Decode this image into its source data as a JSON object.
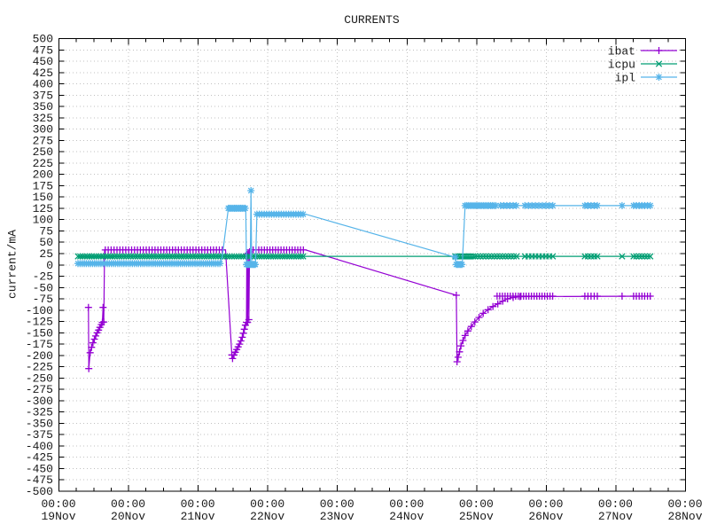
{
  "window": {
    "title": "CURRENTS"
  },
  "colors": {
    "background": "#ffffff",
    "border": "#000000",
    "grid": "#c0c0c0",
    "text": "#1a1a1a",
    "ibat": "#9400d3",
    "icpu": "#009e73",
    "ipl": "#56b4e9"
  },
  "chart_data": {
    "type": "line",
    "title": "CURRENTS",
    "ylabel": "current/mA",
    "xlabel": "",
    "ylim": [
      -500,
      500
    ],
    "ytick_step": 25,
    "grid": true,
    "legend_position": "top-right-inside",
    "x_unit": "days_since_19Nov_00:00",
    "x_range_days": [
      0,
      9
    ],
    "x_axis": {
      "tick_times": [
        "00:00",
        "00:00",
        "00:00",
        "00:00",
        "00:00",
        "00:00",
        "00:00",
        "00:00",
        "00:00",
        "00:00"
      ],
      "tick_dates": [
        "19Nov",
        "20Nov",
        "21Nov",
        "22Nov",
        "23Nov",
        "24Nov",
        "25Nov",
        "26Nov",
        "27Nov",
        "28Nov"
      ],
      "minor_ticks_per_day": 3
    },
    "legend": [
      {
        "label": "ibat"
      },
      {
        "label": "icpu"
      },
      {
        "label": "ipl"
      }
    ],
    "series": [
      {
        "name": "ibat",
        "color": "#9400d3",
        "marker": "plus",
        "line": [
          [
            0.43,
            -95
          ],
          [
            0.435,
            -230
          ],
          [
            0.455,
            -195
          ],
          [
            0.475,
            -183
          ],
          [
            0.495,
            -173
          ],
          [
            0.515,
            -165
          ],
          [
            0.535,
            -158
          ],
          [
            0.555,
            -151
          ],
          [
            0.575,
            -145
          ],
          [
            0.595,
            -139
          ],
          [
            0.615,
            -133
          ],
          [
            0.63,
            -128
          ],
          [
            0.64,
            -95
          ],
          [
            0.65,
            -127
          ],
          [
            0.662,
            32
          ],
          [
            2.4,
            32
          ],
          [
            2.49,
            -200
          ],
          [
            2.5,
            -208
          ],
          [
            2.52,
            -200
          ],
          [
            2.54,
            -194
          ],
          [
            2.56,
            -188
          ],
          [
            2.58,
            -182
          ],
          [
            2.6,
            -176
          ],
          [
            2.62,
            -169
          ],
          [
            2.64,
            -161
          ],
          [
            2.655,
            -152
          ],
          [
            2.67,
            -143
          ],
          [
            2.685,
            -134
          ],
          [
            2.7,
            -128
          ],
          [
            2.705,
            22
          ],
          [
            2.715,
            -128
          ],
          [
            2.725,
            25
          ],
          [
            2.735,
            -122
          ],
          [
            2.745,
            28
          ],
          [
            2.755,
            32
          ],
          [
            3.55,
            32
          ],
          [
            5.715,
            -68
          ],
          [
            5.725,
            -215
          ],
          [
            5.74,
            -205
          ],
          [
            5.76,
            -193
          ],
          [
            5.78,
            -180
          ],
          [
            5.81,
            -168
          ],
          [
            5.84,
            -157
          ],
          [
            5.88,
            -147
          ],
          [
            5.93,
            -137
          ],
          [
            5.98,
            -127
          ],
          [
            6.04,
            -117
          ],
          [
            6.1,
            -108
          ],
          [
            6.17,
            -100
          ],
          [
            6.24,
            -93
          ],
          [
            6.31,
            -87
          ],
          [
            6.38,
            -81
          ],
          [
            6.45,
            -76
          ],
          [
            6.53,
            -73
          ],
          [
            6.63,
            -71
          ],
          [
            8.52,
            -70
          ]
        ],
        "marker_points": [
          [
            0.43,
            -95
          ],
          [
            0.435,
            -230
          ],
          [
            0.455,
            -195
          ],
          [
            0.475,
            -183
          ],
          [
            0.495,
            -173
          ],
          [
            0.515,
            -165
          ],
          [
            0.535,
            -158
          ],
          [
            0.555,
            -151
          ],
          [
            0.575,
            -145
          ],
          [
            0.595,
            -139
          ],
          [
            0.615,
            -133
          ],
          [
            0.63,
            -128
          ],
          [
            0.64,
            -95
          ],
          [
            0.65,
            -127
          ],
          [
            2.49,
            -200
          ],
          [
            2.5,
            -208
          ],
          [
            2.52,
            -200
          ],
          [
            2.54,
            -194
          ],
          [
            2.56,
            -188
          ],
          [
            2.58,
            -182
          ],
          [
            2.6,
            -176
          ],
          [
            2.62,
            -169
          ],
          [
            2.64,
            -161
          ],
          [
            2.655,
            -152
          ],
          [
            2.67,
            -143
          ],
          [
            2.685,
            -134
          ],
          [
            2.7,
            -128
          ],
          [
            2.705,
            22
          ],
          [
            2.715,
            -128
          ],
          [
            2.725,
            25
          ],
          [
            2.735,
            -122
          ],
          [
            2.745,
            28
          ],
          [
            5.715,
            -68
          ],
          [
            5.725,
            -215
          ],
          [
            5.74,
            -205
          ],
          [
            5.76,
            -193
          ],
          [
            5.78,
            -180
          ],
          [
            5.81,
            -168
          ],
          [
            5.84,
            -157
          ],
          [
            5.88,
            -147
          ],
          [
            5.93,
            -137
          ],
          [
            5.98,
            -127
          ],
          [
            6.04,
            -117
          ],
          [
            6.1,
            -108
          ],
          [
            6.17,
            -100
          ],
          [
            6.24,
            -93
          ],
          [
            6.31,
            -87
          ],
          [
            6.38,
            -81
          ],
          [
            6.45,
            -76
          ],
          [
            6.53,
            -73
          ],
          [
            6.63,
            -71
          ],
          [
            8.095,
            -70
          ]
        ],
        "marker_runs": [
          [
            0.672,
            2.39,
            0.042,
            32
          ],
          [
            2.757,
            3.54,
            0.04,
            32
          ],
          [
            6.3,
            7.12,
            0.038,
            -70
          ],
          [
            7.56,
            7.78,
            0.045,
            -70
          ],
          [
            8.26,
            8.52,
            0.04,
            -70
          ]
        ]
      },
      {
        "name": "icpu",
        "color": "#009e73",
        "marker": "cross",
        "line": [
          [
            0.28,
            18
          ],
          [
            8.52,
            18
          ]
        ],
        "marker_points": [
          [
            8.095,
            18
          ]
        ],
        "marker_runs": [
          [
            0.28,
            3.54,
            0.033,
            18
          ],
          [
            5.7,
            6.0,
            0.028,
            18
          ],
          [
            6.02,
            6.6,
            0.04,
            18
          ],
          [
            6.7,
            7.12,
            0.05,
            18
          ],
          [
            7.56,
            7.78,
            0.045,
            18
          ],
          [
            8.26,
            8.52,
            0.04,
            18
          ]
        ]
      },
      {
        "name": "ipl",
        "color": "#56b4e9",
        "marker": "star",
        "line": [
          [
            0.28,
            2
          ],
          [
            2.32,
            2
          ],
          [
            2.35,
            15
          ],
          [
            2.44,
            124
          ],
          [
            2.69,
            124
          ],
          [
            2.7,
            2
          ],
          [
            2.72,
            -2
          ],
          [
            2.74,
            2
          ],
          [
            2.755,
            0
          ],
          [
            2.765,
            163
          ],
          [
            2.775,
            0
          ],
          [
            2.79,
            -2
          ],
          [
            2.81,
            2
          ],
          [
            2.83,
            0
          ],
          [
            2.85,
            111
          ],
          [
            3.55,
            111
          ],
          [
            5.7,
            16
          ],
          [
            5.715,
            0
          ],
          [
            5.74,
            -3
          ],
          [
            5.77,
            2
          ],
          [
            5.8,
            0
          ],
          [
            5.84,
            130
          ],
          [
            8.52,
            130
          ]
        ],
        "marker_points": [
          [
            2.765,
            163
          ],
          [
            5.7,
            16
          ],
          [
            8.095,
            130
          ]
        ],
        "marker_runs": [
          [
            0.28,
            2.32,
            0.03,
            2
          ],
          [
            2.44,
            2.69,
            0.022,
            124
          ],
          [
            2.7,
            2.84,
            0.018,
            0
          ],
          [
            2.85,
            3.54,
            0.035,
            111
          ],
          [
            5.715,
            5.8,
            0.02,
            0
          ],
          [
            5.84,
            6.3,
            0.026,
            130
          ],
          [
            6.35,
            6.6,
            0.045,
            130
          ],
          [
            6.7,
            7.12,
            0.05,
            130
          ],
          [
            7.56,
            7.78,
            0.045,
            130
          ],
          [
            8.26,
            8.52,
            0.04,
            130
          ]
        ]
      }
    ]
  }
}
